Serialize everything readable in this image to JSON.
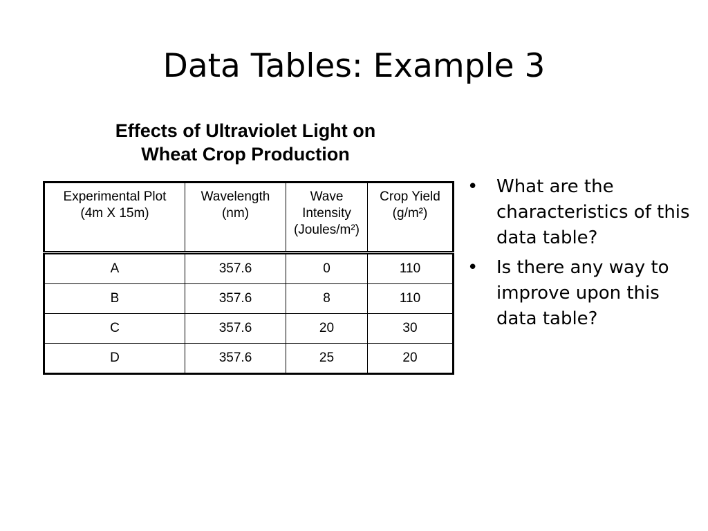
{
  "slide": {
    "title": "Data Tables: Example 3"
  },
  "table": {
    "caption_line1": "Effects of Ultraviolet Light on",
    "caption_line2": "Wheat Crop Production",
    "headers": [
      {
        "line1": "Experimental Plot",
        "line2": "(4m X 15m)",
        "line3": ""
      },
      {
        "line1": "Wavelength",
        "line2": "(nm)",
        "line3": ""
      },
      {
        "line1": "Wave",
        "line2": "Intensity",
        "line3": "(Joules/m²)"
      },
      {
        "line1": "Crop Yield",
        "line2": "(g/m²)",
        "line3": ""
      }
    ],
    "rows": [
      [
        "A",
        "357.6",
        "0",
        "110"
      ],
      [
        "B",
        "357.6",
        "8",
        "110"
      ],
      [
        "C",
        "357.6",
        "20",
        "30"
      ],
      [
        "D",
        "357.6",
        "25",
        "20"
      ]
    ]
  },
  "bullets": {
    "symbol": "•",
    "items": [
      "What are the characteristics of this data table?",
      "Is there any way to improve upon this data table?"
    ]
  }
}
